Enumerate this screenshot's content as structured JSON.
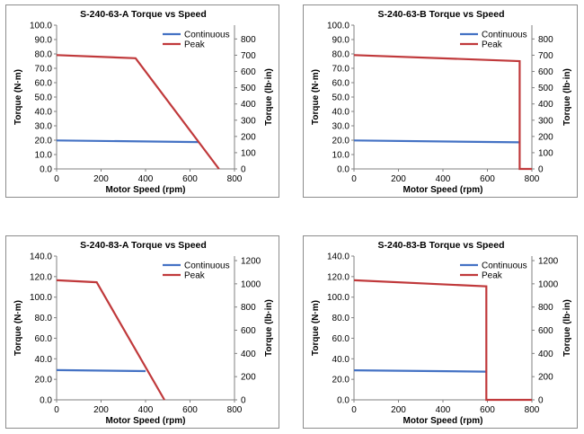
{
  "colors": {
    "continuous": "#4472c4",
    "peak": "#c0393b",
    "axis": "#808080",
    "border": "#8c8c8c"
  },
  "chart_data": [
    {
      "type": "line",
      "title": "S-240-63-A Torque vs Speed",
      "xlabel": "Motor Speed (rpm)",
      "ylabel": "Torque (N·m)",
      "y2label": "Torque (lb·in)",
      "xlim": [
        0,
        800
      ],
      "ylim": [
        0,
        100
      ],
      "y2lim": [
        0,
        885
      ],
      "xticks": [
        "0",
        "200",
        "400",
        "600",
        "800"
      ],
      "yticks": [
        "0.0",
        "10.0",
        "20.0",
        "30.0",
        "40.0",
        "50.0",
        "60.0",
        "70.0",
        "80.0",
        "90.0",
        "100.0"
      ],
      "y2ticks": [
        "0",
        "100",
        "200",
        "300",
        "400",
        "500",
        "600",
        "700",
        "800"
      ],
      "y2tick_values": [
        0,
        100,
        200,
        300,
        400,
        500,
        600,
        700,
        800
      ],
      "legend": "top-right",
      "grid": false,
      "series": [
        {
          "name": "Continuous",
          "x": [
            0,
            640
          ],
          "y": [
            19.8,
            18.7
          ]
        },
        {
          "name": "Peak",
          "x": [
            0,
            355,
            730
          ],
          "y": [
            79.2,
            77.0,
            0
          ]
        }
      ]
    },
    {
      "type": "line",
      "title": "S-240-63-B Torque vs Speed",
      "xlabel": "Motor Speed (rpm)",
      "ylabel": "Torque (N·m)",
      "y2label": "Torque (lb·in)",
      "xlim": [
        0,
        800
      ],
      "ylim": [
        0,
        100
      ],
      "y2lim": [
        0,
        885
      ],
      "xticks": [
        "0",
        "200",
        "400",
        "600",
        "800"
      ],
      "yticks": [
        "0.0",
        "10.0",
        "20.0",
        "30.0",
        "40.0",
        "50.0",
        "60.0",
        "70.0",
        "80.0",
        "90.0",
        "100.0"
      ],
      "y2ticks": [
        "0",
        "100",
        "200",
        "300",
        "400",
        "500",
        "600",
        "700",
        "800"
      ],
      "y2tick_values": [
        0,
        100,
        200,
        300,
        400,
        500,
        600,
        700,
        800
      ],
      "legend": "top-right",
      "grid": false,
      "series": [
        {
          "name": "Continuous",
          "x": [
            0,
            745
          ],
          "y": [
            19.8,
            18.5
          ]
        },
        {
          "name": "Peak",
          "x": [
            0,
            745,
            745,
            800
          ],
          "y": [
            79.2,
            75.0,
            0,
            0
          ]
        }
      ]
    },
    {
      "type": "line",
      "title": "S-240-83-A Torque vs Speed",
      "xlabel": "Motor Speed (rpm)",
      "ylabel": "Torque (N·m)",
      "y2label": "Torque (lb·in)",
      "xlim": [
        0,
        800
      ],
      "ylim": [
        0,
        140
      ],
      "y2lim": [
        0,
        1239
      ],
      "xticks": [
        "0",
        "200",
        "400",
        "600",
        "800"
      ],
      "yticks": [
        "0.0",
        "20.0",
        "40.0",
        "60.0",
        "80.0",
        "100.0",
        "120.0",
        "140.0"
      ],
      "y2ticks": [
        "0",
        "200",
        "400",
        "600",
        "800",
        "1000",
        "1200"
      ],
      "y2tick_values": [
        0,
        200,
        400,
        600,
        800,
        1000,
        1200
      ],
      "legend": "top-right",
      "grid": false,
      "series": [
        {
          "name": "Continuous",
          "x": [
            0,
            400
          ],
          "y": [
            29.0,
            28.0
          ]
        },
        {
          "name": "Peak",
          "x": [
            0,
            180,
            485
          ],
          "y": [
            116.5,
            114.5,
            0
          ]
        }
      ]
    },
    {
      "type": "line",
      "title": "S-240-83-B Torque vs Speed",
      "xlabel": "Motor Speed (rpm)",
      "ylabel": "Torque (N·m)",
      "y2label": "Torque (lb·in)",
      "xlim": [
        0,
        800
      ],
      "ylim": [
        0,
        140
      ],
      "y2lim": [
        0,
        1239
      ],
      "xticks": [
        "0",
        "200",
        "400",
        "600",
        "800"
      ],
      "yticks": [
        "0.0",
        "20.0",
        "40.0",
        "60.0",
        "80.0",
        "100.0",
        "120.0",
        "140.0"
      ],
      "y2ticks": [
        "0",
        "200",
        "400",
        "600",
        "800",
        "1000",
        "1200"
      ],
      "y2tick_values": [
        0,
        200,
        400,
        600,
        800,
        1000,
        1200
      ],
      "legend": "top-right",
      "grid": false,
      "series": [
        {
          "name": "Continuous",
          "x": [
            0,
            595
          ],
          "y": [
            28.8,
            27.5
          ]
        },
        {
          "name": "Peak",
          "x": [
            0,
            595,
            595,
            800
          ],
          "y": [
            116.5,
            110.5,
            0,
            0
          ]
        }
      ]
    }
  ]
}
